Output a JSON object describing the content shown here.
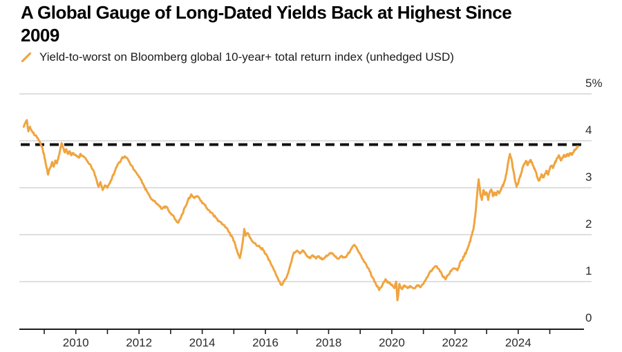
{
  "header": {
    "title": "A Global Gauge of Long-Dated Yields Back at Highest Since\n2009"
  },
  "legend": {
    "marker": "orange-slash",
    "label": "Yield-to-worst on Bloomberg global 10-year+ total return index (unhedged USD)"
  },
  "colors": {
    "series": "#F0A43F",
    "dashed_line": "#111111",
    "grid": "#cccccc",
    "axis": "#1a1a1a",
    "tick_text": "#2b2b2b",
    "title_text": "#000000",
    "background": "#ffffff"
  },
  "chart_data": {
    "type": "line",
    "title": "A Global Gauge of Long-Dated Yields Back at Highest Since 2009",
    "series_name": "Yield-to-worst on Bloomberg global 10-year+ total return index (unhedged USD)",
    "unit": "%",
    "xlabel": "",
    "ylabel": "",
    "grid": "horizontal",
    "legend_position": "top-left",
    "ylim": [
      0,
      5
    ],
    "xlim": [
      2008.2,
      2026.1
    ],
    "y_ticks": [
      {
        "value": 0,
        "label": "0"
      },
      {
        "value": 1,
        "label": "1"
      },
      {
        "value": 2,
        "label": "2"
      },
      {
        "value": 3,
        "label": "3"
      },
      {
        "value": 4,
        "label": "4"
      },
      {
        "value": 5,
        "label": "5%"
      }
    ],
    "x_ticks_years": [
      2009,
      2010,
      2011,
      2012,
      2013,
      2014,
      2015,
      2016,
      2017,
      2018,
      2019,
      2020,
      2021,
      2022,
      2023,
      2024,
      2025
    ],
    "x_tick_labels": [
      "2010",
      "2012",
      "2014",
      "2016",
      "2018",
      "2020",
      "2022",
      "2024"
    ],
    "reference_line": {
      "style": "dashed",
      "value": 3.92
    },
    "points": [
      [
        2008.35,
        4.3
      ],
      [
        2008.4,
        4.38
      ],
      [
        2008.45,
        4.44
      ],
      [
        2008.5,
        4.2
      ],
      [
        2008.55,
        4.3
      ],
      [
        2008.62,
        4.2
      ],
      [
        2008.7,
        4.12
      ],
      [
        2008.78,
        4.06
      ],
      [
        2008.86,
        3.98
      ],
      [
        2008.94,
        3.85
      ],
      [
        2009.0,
        3.68
      ],
      [
        2009.06,
        3.48
      ],
      [
        2009.12,
        3.28
      ],
      [
        2009.18,
        3.42
      ],
      [
        2009.25,
        3.55
      ],
      [
        2009.3,
        3.45
      ],
      [
        2009.35,
        3.58
      ],
      [
        2009.4,
        3.52
      ],
      [
        2009.45,
        3.65
      ],
      [
        2009.5,
        3.8
      ],
      [
        2009.55,
        3.95
      ],
      [
        2009.6,
        3.85
      ],
      [
        2009.65,
        3.75
      ],
      [
        2009.7,
        3.82
      ],
      [
        2009.75,
        3.72
      ],
      [
        2009.8,
        3.78
      ],
      [
        2009.85,
        3.7
      ],
      [
        2009.9,
        3.74
      ],
      [
        2010.0,
        3.7
      ],
      [
        2010.1,
        3.64
      ],
      [
        2010.15,
        3.72
      ],
      [
        2010.25,
        3.66
      ],
      [
        2010.35,
        3.58
      ],
      [
        2010.45,
        3.5
      ],
      [
        2010.55,
        3.38
      ],
      [
        2010.65,
        3.18
      ],
      [
        2010.72,
        3.02
      ],
      [
        2010.78,
        3.12
      ],
      [
        2010.85,
        2.95
      ],
      [
        2010.92,
        3.05
      ],
      [
        2011.0,
        3.0
      ],
      [
        2011.08,
        3.1
      ],
      [
        2011.15,
        3.22
      ],
      [
        2011.25,
        3.38
      ],
      [
        2011.35,
        3.52
      ],
      [
        2011.45,
        3.62
      ],
      [
        2011.55,
        3.67
      ],
      [
        2011.65,
        3.6
      ],
      [
        2011.75,
        3.48
      ],
      [
        2011.85,
        3.38
      ],
      [
        2011.95,
        3.28
      ],
      [
        2012.05,
        3.18
      ],
      [
        2012.15,
        3.05
      ],
      [
        2012.25,
        2.92
      ],
      [
        2012.35,
        2.8
      ],
      [
        2012.45,
        2.72
      ],
      [
        2012.55,
        2.66
      ],
      [
        2012.65,
        2.6
      ],
      [
        2012.75,
        2.56
      ],
      [
        2012.85,
        2.6
      ],
      [
        2012.95,
        2.5
      ],
      [
        2013.05,
        2.42
      ],
      [
        2013.15,
        2.32
      ],
      [
        2013.25,
        2.26
      ],
      [
        2013.35,
        2.42
      ],
      [
        2013.45,
        2.58
      ],
      [
        2013.55,
        2.74
      ],
      [
        2013.65,
        2.86
      ],
      [
        2013.75,
        2.78
      ],
      [
        2013.85,
        2.82
      ],
      [
        2013.95,
        2.72
      ],
      [
        2014.05,
        2.66
      ],
      [
        2014.15,
        2.56
      ],
      [
        2014.25,
        2.48
      ],
      [
        2014.35,
        2.42
      ],
      [
        2014.45,
        2.35
      ],
      [
        2014.55,
        2.28
      ],
      [
        2014.65,
        2.22
      ],
      [
        2014.75,
        2.15
      ],
      [
        2014.85,
        2.05
      ],
      [
        2014.95,
        1.95
      ],
      [
        2015.02,
        1.85
      ],
      [
        2015.08,
        1.7
      ],
      [
        2015.14,
        1.58
      ],
      [
        2015.19,
        1.5
      ],
      [
        2015.25,
        1.7
      ],
      [
        2015.3,
        1.95
      ],
      [
        2015.33,
        2.12
      ],
      [
        2015.38,
        1.98
      ],
      [
        2015.45,
        2.03
      ],
      [
        2015.55,
        1.9
      ],
      [
        2015.65,
        1.82
      ],
      [
        2015.75,
        1.76
      ],
      [
        2015.85,
        1.72
      ],
      [
        2015.95,
        1.66
      ],
      [
        2016.05,
        1.55
      ],
      [
        2016.15,
        1.42
      ],
      [
        2016.25,
        1.28
      ],
      [
        2016.35,
        1.12
      ],
      [
        2016.45,
        1.0
      ],
      [
        2016.52,
        0.93
      ],
      [
        2016.6,
        1.02
      ],
      [
        2016.7,
        1.15
      ],
      [
        2016.8,
        1.38
      ],
      [
        2016.9,
        1.62
      ],
      [
        2017.0,
        1.66
      ],
      [
        2017.1,
        1.6
      ],
      [
        2017.2,
        1.66
      ],
      [
        2017.3,
        1.56
      ],
      [
        2017.4,
        1.5
      ],
      [
        2017.5,
        1.56
      ],
      [
        2017.6,
        1.49
      ],
      [
        2017.7,
        1.54
      ],
      [
        2017.8,
        1.47
      ],
      [
        2017.9,
        1.52
      ],
      [
        2018.0,
        1.57
      ],
      [
        2018.1,
        1.61
      ],
      [
        2018.2,
        1.54
      ],
      [
        2018.3,
        1.49
      ],
      [
        2018.4,
        1.55
      ],
      [
        2018.5,
        1.52
      ],
      [
        2018.6,
        1.58
      ],
      [
        2018.7,
        1.68
      ],
      [
        2018.8,
        1.78
      ],
      [
        2018.9,
        1.7
      ],
      [
        2019.0,
        1.58
      ],
      [
        2019.1,
        1.46
      ],
      [
        2019.2,
        1.35
      ],
      [
        2019.3,
        1.22
      ],
      [
        2019.4,
        1.08
      ],
      [
        2019.5,
        0.94
      ],
      [
        2019.6,
        0.82
      ],
      [
        2019.7,
        0.92
      ],
      [
        2019.8,
        1.05
      ],
      [
        2019.9,
        0.97
      ],
      [
        2020.0,
        0.94
      ],
      [
        2020.08,
        0.86
      ],
      [
        2020.14,
        1.0
      ],
      [
        2020.18,
        0.6
      ],
      [
        2020.24,
        0.95
      ],
      [
        2020.32,
        0.84
      ],
      [
        2020.4,
        0.92
      ],
      [
        2020.5,
        0.86
      ],
      [
        2020.6,
        0.9
      ],
      [
        2020.7,
        0.86
      ],
      [
        2020.8,
        0.92
      ],
      [
        2020.9,
        0.88
      ],
      [
        2021.0,
        0.95
      ],
      [
        2021.1,
        1.08
      ],
      [
        2021.2,
        1.2
      ],
      [
        2021.3,
        1.28
      ],
      [
        2021.4,
        1.33
      ],
      [
        2021.5,
        1.26
      ],
      [
        2021.6,
        1.12
      ],
      [
        2021.7,
        1.05
      ],
      [
        2021.8,
        1.15
      ],
      [
        2021.9,
        1.25
      ],
      [
        2022.0,
        1.28
      ],
      [
        2022.08,
        1.24
      ],
      [
        2022.15,
        1.38
      ],
      [
        2022.22,
        1.45
      ],
      [
        2022.3,
        1.56
      ],
      [
        2022.38,
        1.68
      ],
      [
        2022.45,
        1.8
      ],
      [
        2022.52,
        1.97
      ],
      [
        2022.58,
        2.1
      ],
      [
        2022.64,
        2.4
      ],
      [
        2022.68,
        2.7
      ],
      [
        2022.72,
        3.0
      ],
      [
        2022.75,
        3.18
      ],
      [
        2022.8,
        2.88
      ],
      [
        2022.85,
        2.74
      ],
      [
        2022.9,
        2.95
      ],
      [
        2022.95,
        2.85
      ],
      [
        2023.0,
        2.9
      ],
      [
        2023.05,
        2.74
      ],
      [
        2023.1,
        2.9
      ],
      [
        2023.15,
        2.96
      ],
      [
        2023.2,
        2.82
      ],
      [
        2023.25,
        2.9
      ],
      [
        2023.3,
        2.84
      ],
      [
        2023.35,
        2.93
      ],
      [
        2023.4,
        2.88
      ],
      [
        2023.45,
        2.96
      ],
      [
        2023.5,
        3.03
      ],
      [
        2023.55,
        3.1
      ],
      [
        2023.6,
        3.22
      ],
      [
        2023.65,
        3.4
      ],
      [
        2023.7,
        3.6
      ],
      [
        2023.74,
        3.72
      ],
      [
        2023.8,
        3.56
      ],
      [
        2023.85,
        3.36
      ],
      [
        2023.9,
        3.16
      ],
      [
        2023.95,
        3.02
      ],
      [
        2024.0,
        3.1
      ],
      [
        2024.05,
        3.22
      ],
      [
        2024.1,
        3.32
      ],
      [
        2024.15,
        3.44
      ],
      [
        2024.2,
        3.52
      ],
      [
        2024.25,
        3.57
      ],
      [
        2024.3,
        3.48
      ],
      [
        2024.35,
        3.55
      ],
      [
        2024.4,
        3.59
      ],
      [
        2024.45,
        3.5
      ],
      [
        2024.5,
        3.42
      ],
      [
        2024.55,
        3.35
      ],
      [
        2024.6,
        3.24
      ],
      [
        2024.65,
        3.15
      ],
      [
        2024.7,
        3.22
      ],
      [
        2024.75,
        3.28
      ],
      [
        2024.8,
        3.22
      ],
      [
        2024.85,
        3.3
      ],
      [
        2024.9,
        3.36
      ],
      [
        2024.95,
        3.28
      ],
      [
        2025.0,
        3.4
      ],
      [
        2025.05,
        3.47
      ],
      [
        2025.1,
        3.42
      ],
      [
        2025.15,
        3.52
      ],
      [
        2025.2,
        3.58
      ],
      [
        2025.25,
        3.64
      ],
      [
        2025.3,
        3.68
      ],
      [
        2025.35,
        3.58
      ],
      [
        2025.4,
        3.64
      ],
      [
        2025.45,
        3.7
      ],
      [
        2025.5,
        3.66
      ],
      [
        2025.55,
        3.72
      ],
      [
        2025.6,
        3.68
      ],
      [
        2025.65,
        3.73
      ],
      [
        2025.7,
        3.7
      ],
      [
        2025.75,
        3.76
      ],
      [
        2025.8,
        3.8
      ],
      [
        2025.85,
        3.84
      ],
      [
        2025.9,
        3.88
      ]
    ]
  }
}
